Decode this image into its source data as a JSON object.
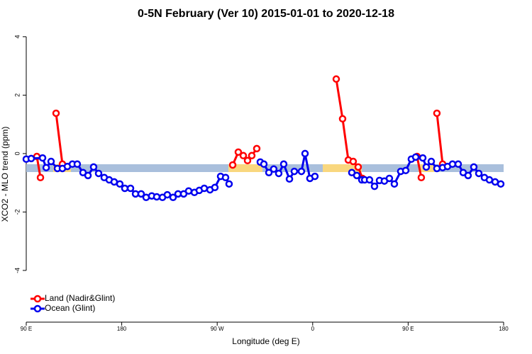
{
  "chart_data": {
    "type": "line",
    "title": "0-5N February (Ver 10)   2015-01-01 to 2020-12-18",
    "x_label": "Longitude (deg E)",
    "y_label": "XCO2 - MLO trend (ppm)",
    "xlim": [
      90,
      540
    ],
    "ylim": [
      -5.77,
      4.36
    ],
    "xticks": [
      {
        "value": 90,
        "label": "90 E"
      },
      180,
      {
        "value": 270,
        "label": "90 W"
      },
      {
        "value": 360,
        "label": "0"
      },
      {
        "value": 450,
        "label": "90 E"
      },
      {
        "value": 540,
        "label": "180"
      }
    ],
    "yticks": [
      4,
      2,
      0,
      -2,
      -4
    ],
    "legend": "bottomleft",
    "band_y": -0.5,
    "surface_bands": [
      {
        "xlim": [
          90,
          115.4
        ],
        "color": "#a9bfdc"
      },
      {
        "xlim": [
          115.4,
          132.1
        ],
        "color": "#f9d77e"
      },
      {
        "xlim": [
          132.1,
          280.6
        ],
        "color": "#a9bfdc"
      },
      {
        "xlim": [
          280.6,
          312.7
        ],
        "color": "#f9d77e"
      },
      {
        "xlim": [
          312.7,
          369.5
        ],
        "color": "#a9bfdc"
      },
      {
        "xlim": [
          369.5,
          406.3
        ],
        "color": "#f9d77e"
      },
      {
        "xlim": [
          406.3,
          459.7
        ],
        "color": "#a9bfdc"
      },
      {
        "xlim": [
          459.7,
          474.5
        ],
        "color": "#f9d77e"
      },
      {
        "xlim": [
          474.5,
          540
        ],
        "color": "#a9bfdc"
      }
    ],
    "series": [
      {
        "name": "Land (Nadir&Glint)",
        "color": "#ff0000",
        "x": [
          100.0,
          103.4,
          null,
          118.1,
          124.1,
          null,
          284.6,
          289.9,
          294.6,
          298.6,
          302.6,
          307.3,
          null,
          382.2,
          388.2,
          393.6,
          398.2,
          402.9,
          406.9,
          null,
          458.4,
          462.4,
          null,
          477.1,
          482.5
        ],
        "values": [
          -0.1,
          -0.82,
          null,
          1.38,
          -0.36,
          null,
          -0.39,
          0.05,
          -0.07,
          -0.24,
          -0.07,
          0.17,
          null,
          2.55,
          1.19,
          -0.22,
          -0.27,
          -0.46,
          -0.85,
          null,
          -0.1,
          -0.82,
          null,
          1.38,
          -0.36
        ]
      },
      {
        "name": "Ocean (Glint)",
        "color": "#0000ee",
        "x": [
          90.0,
          94.7,
          105.4,
          108.8,
          113.4,
          119.4,
          124.1,
          128.8,
          133.5,
          138.1,
          143.5,
          148.2,
          153.5,
          158.2,
          163.5,
          168.2,
          172.9,
          178.2,
          182.9,
          188.3,
          193.0,
          198.3,
          203.0,
          208.3,
          213.0,
          218.4,
          223.0,
          228.4,
          233.1,
          238.4,
          243.1,
          248.5,
          253.1,
          257.8,
          263.2,
          267.8,
          273.2,
          277.9,
          281.2,
          null,
          310.6,
          314.0,
          318.7,
          323.3,
          328.0,
          332.7,
          338.1,
          342.7,
          349.4,
          352.8,
          357.4,
          362.1,
          null,
          396.9,
          401.6,
          406.3,
          409.0,
          413.6,
          418.3,
          423.0,
          427.6,
          432.3,
          437.0,
          443.0,
          447.7,
          453.0,
          457.1,
          463.8,
          467.1,
          471.8,
          477.1,
          482.5,
          487.1,
          491.8,
          497.2,
          501.9,
          506.5,
          511.9,
          516.6,
          521.9,
          526.6,
          532.0,
          537.3
        ],
        "values": [
          -0.19,
          -0.17,
          -0.15,
          -0.48,
          -0.27,
          -0.51,
          -0.51,
          -0.44,
          -0.36,
          -0.36,
          -0.65,
          -0.75,
          -0.46,
          -0.68,
          -0.82,
          -0.9,
          -0.97,
          -1.04,
          -1.19,
          -1.19,
          -1.38,
          -1.38,
          -1.5,
          -1.45,
          -1.48,
          -1.5,
          -1.41,
          -1.5,
          -1.38,
          -1.38,
          -1.28,
          -1.33,
          -1.26,
          -1.19,
          -1.24,
          -1.16,
          -0.78,
          -0.82,
          -1.04,
          null,
          -0.29,
          -0.36,
          -0.65,
          -0.53,
          -0.68,
          -0.36,
          -0.87,
          -0.61,
          -0.61,
          0.0,
          -0.85,
          -0.78,
          null,
          -0.65,
          -0.75,
          -0.9,
          -0.9,
          -0.9,
          -1.12,
          -0.92,
          -0.94,
          -0.85,
          -1.04,
          -0.61,
          -0.58,
          -0.19,
          -0.12,
          -0.15,
          -0.46,
          -0.27,
          -0.51,
          -0.48,
          -0.44,
          -0.36,
          -0.36,
          -0.65,
          -0.75,
          -0.46,
          -0.68,
          -0.82,
          -0.9,
          -0.97,
          -1.04
        ]
      }
    ]
  }
}
